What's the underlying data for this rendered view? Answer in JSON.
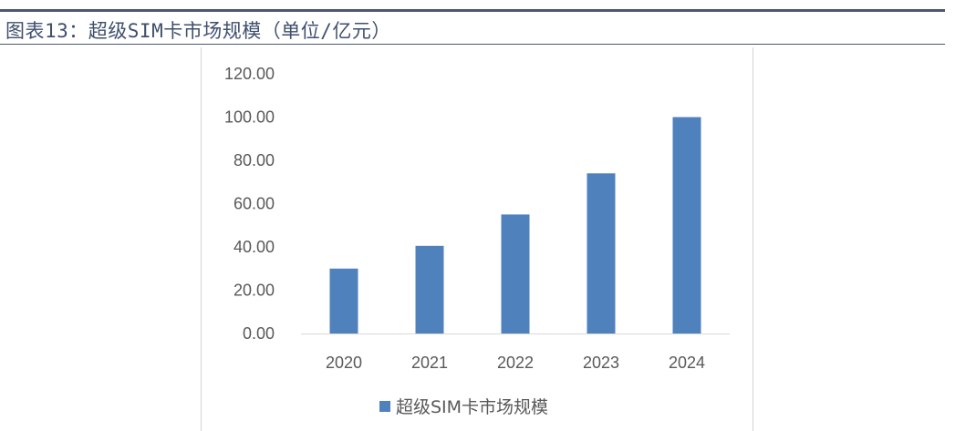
{
  "caption": {
    "text": "图表13：超级SIM卡市场规模（单位/亿元）"
  },
  "chart_data": {
    "type": "bar",
    "categories": [
      "2020",
      "2021",
      "2022",
      "2023",
      "2024"
    ],
    "series": [
      {
        "name": "超级SIM卡市场规模",
        "values": [
          30,
          40.5,
          55,
          74,
          100
        ]
      }
    ],
    "ylim": [
      0,
      120
    ],
    "yticks": [
      "0.00",
      "20.00",
      "40.00",
      "60.00",
      "80.00",
      "100.00",
      "120.00"
    ],
    "grid": false,
    "legend": "bottom",
    "colors": {
      "bar": "#4f81bd",
      "axis": "#d9d9d9"
    }
  }
}
